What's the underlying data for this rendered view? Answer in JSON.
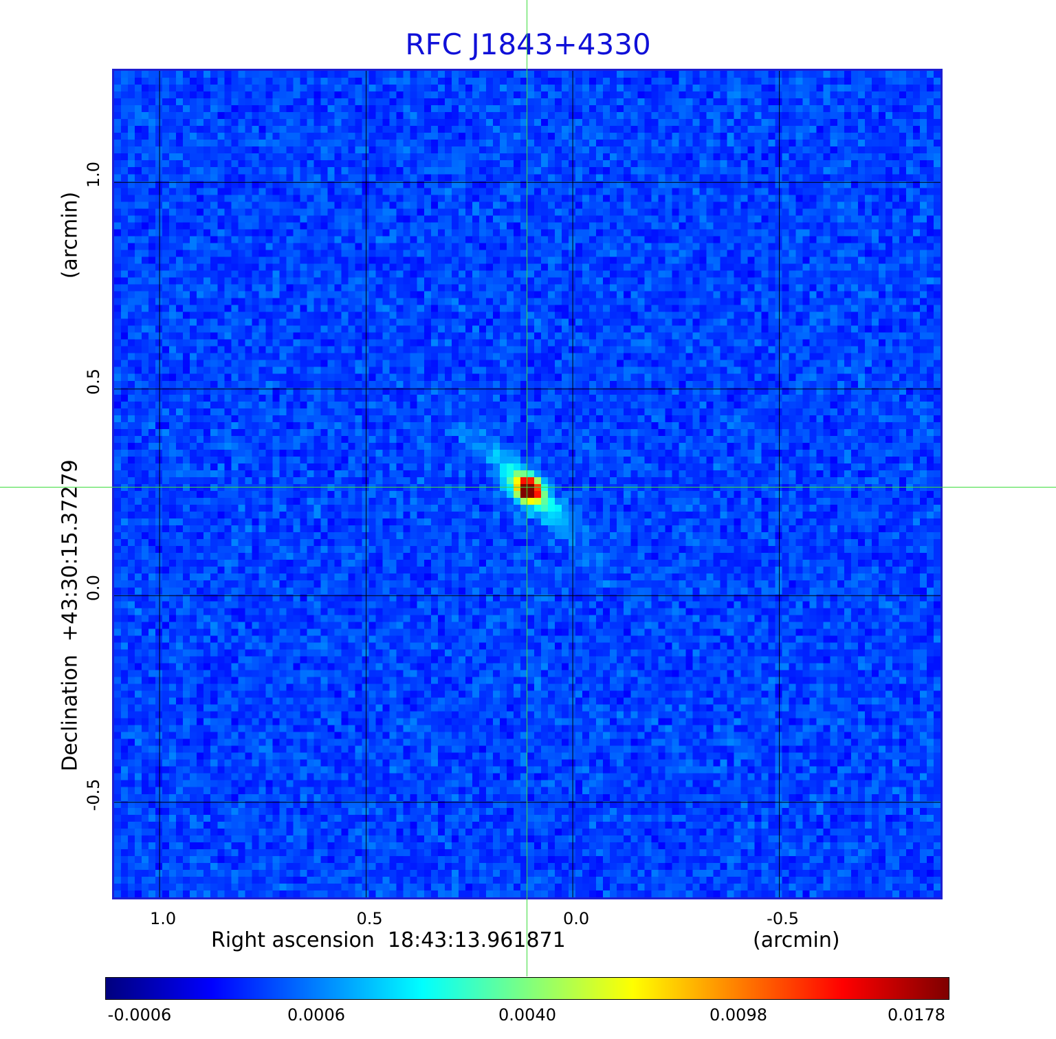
{
  "chart_data": {
    "type": "heatmap",
    "title": "RFC J1843+4330",
    "xlabel": "Right ascension  18:43:13.961871",
    "xunit": "(arcmin)",
    "ylabel": "Declination  +43:30:15.37279",
    "yunit": "(arcmin)",
    "x_ticks": [
      "1.0",
      "0.5",
      "0.0",
      "-0.5"
    ],
    "x_tick_values": [
      1.0,
      0.5,
      0.0,
      -0.5
    ],
    "y_ticks": [
      "1.0",
      "0.5",
      "0.0",
      "-0.5"
    ],
    "y_tick_values": [
      1.0,
      0.5,
      0.0,
      -0.5
    ],
    "xlim": [
      1.11,
      -0.9
    ],
    "ylim": [
      -0.74,
      1.27
    ],
    "grid": true,
    "colormap": "jet",
    "colorbar_ticks": [
      "-0.0006",
      "0.0006",
      "0.0040",
      "0.0098",
      "0.0178"
    ],
    "value_range": [
      -0.0006,
      0.0178
    ],
    "peak": {
      "x": 0.11,
      "y": 0.26
    },
    "crosshair": {
      "x": 0.11,
      "y": 0.26
    }
  },
  "colors": {
    "title": "#1010d8",
    "frame": "#1e1ed2",
    "crosshair": "#3cdc3c",
    "grid": "#000000"
  }
}
